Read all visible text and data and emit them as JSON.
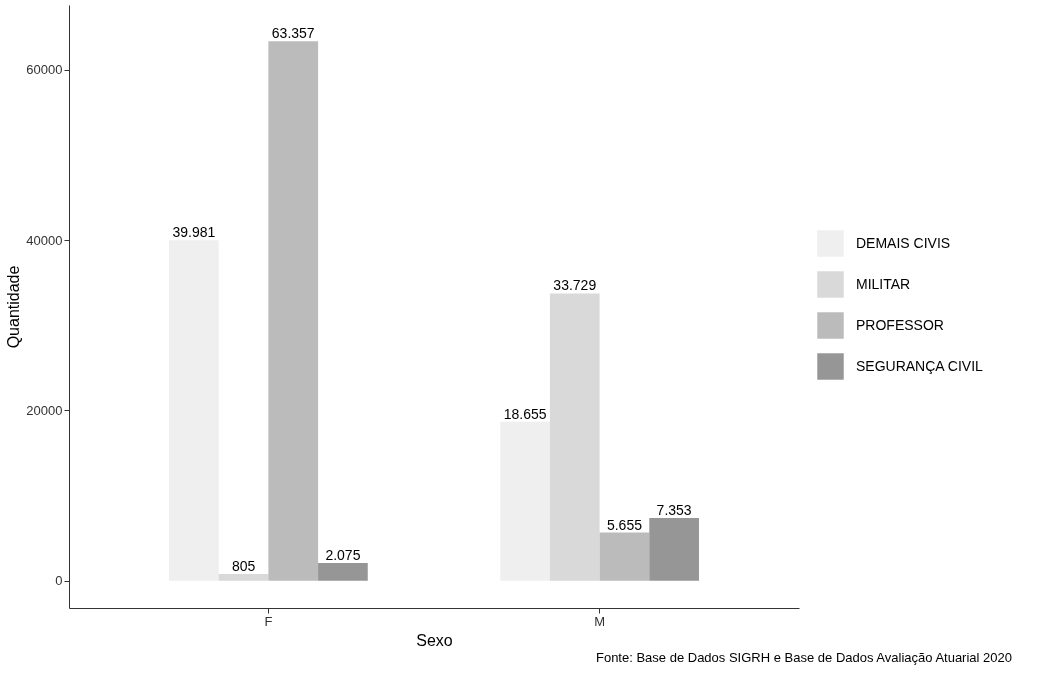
{
  "chart_data": {
    "type": "bar",
    "xlabel": "Sexo",
    "ylabel": "Quantidade",
    "categories": [
      "F",
      "M"
    ],
    "series": [
      {
        "name": "DEMAIS CIVIS",
        "color": "#efefef",
        "values": [
          39981,
          18655
        ],
        "value_labels": [
          "39.981",
          "18.655"
        ]
      },
      {
        "name": "MILITAR",
        "color": "#d9d9d9",
        "values": [
          805,
          33729
        ],
        "value_labels": [
          "805",
          "33.729"
        ]
      },
      {
        "name": "PROFESSOR",
        "color": "#bbbbbb",
        "values": [
          63357,
          5655
        ],
        "value_labels": [
          "63.357",
          "5.655"
        ]
      },
      {
        "name": "SEGURANÇA CIVIL",
        "color": "#969696",
        "values": [
          2075,
          7353
        ],
        "value_labels": [
          "2.075",
          "7.353"
        ]
      }
    ],
    "ylim": [
      -3200,
      67600
    ],
    "yticks": [
      0,
      20000,
      40000,
      60000
    ],
    "grid": false,
    "legend": "right",
    "annotations": [
      "Fonte: Base de Dados SIGRH e Base de Dados Avaliação Atuarial 2020"
    ]
  }
}
